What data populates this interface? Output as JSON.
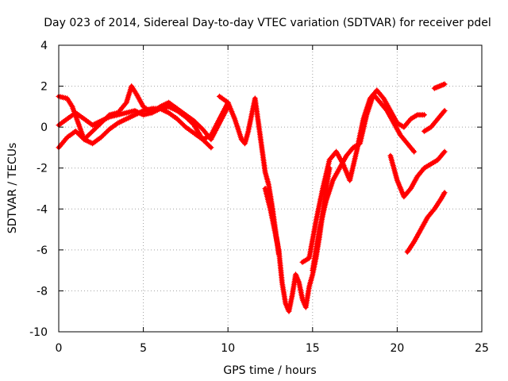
{
  "chart_data": {
    "type": "scatter",
    "title": "Day 023 of 2014, Sidereal Day-to-day VTEC variation (SDTVAR) for receiver pdel",
    "xlabel": "GPS time / hours",
    "ylabel": "SDTVAR / TECUs",
    "xlim": [
      0,
      25
    ],
    "ylim": [
      -10,
      4
    ],
    "xticks": [
      0,
      5,
      10,
      15,
      20,
      25
    ],
    "yticks": [
      -10,
      -8,
      -6,
      -4,
      -2,
      0,
      2,
      4
    ],
    "grid": true,
    "marker": "plus",
    "color": "#ff0000",
    "series": [
      {
        "x": [
          0,
          0.5,
          1,
          1.5,
          2,
          2.5,
          3,
          3.5,
          4,
          4.5,
          5,
          5.5,
          6,
          6.5,
          7,
          7.5,
          8,
          8.5,
          9,
          9.5,
          10
        ],
        "y": [
          -1.0,
          -0.5,
          -0.2,
          -0.6,
          -0.8,
          -0.5,
          -0.1,
          0.2,
          0.4,
          0.6,
          0.8,
          0.9,
          0.9,
          0.7,
          0.4,
          0.0,
          -0.3,
          -0.6,
          -0.4,
          0.4,
          1.2
        ]
      },
      {
        "x": [
          0,
          0.5,
          1,
          1.5,
          2,
          2.5,
          3,
          3.5,
          4,
          4.5,
          5,
          5.5,
          6,
          6.5,
          7,
          7.5,
          8,
          8.5,
          9,
          9.5,
          10
        ],
        "y": [
          0.1,
          0.4,
          0.7,
          0.4,
          0.1,
          0.3,
          0.5,
          0.6,
          0.7,
          0.8,
          0.6,
          0.7,
          1.0,
          1.2,
          0.9,
          0.6,
          0.3,
          -0.1,
          -0.6,
          0.2,
          1.0
        ]
      },
      {
        "x": [
          0,
          0.5,
          0.8,
          1.5,
          2,
          2.5,
          3,
          3.5,
          4,
          4.3,
          4.6,
          5,
          5.5,
          6,
          6.5,
          7,
          7.5,
          8,
          8.5,
          9
        ],
        "y": [
          1.5,
          1.4,
          1.0,
          -0.6,
          -0.2,
          0.2,
          0.6,
          0.7,
          1.2,
          2.0,
          1.6,
          1.0,
          0.7,
          0.9,
          1.0,
          0.8,
          0.5,
          0.1,
          -0.6,
          -1.0
        ]
      },
      {
        "x": [
          9.5,
          10.0,
          10.4,
          10.8,
          11.0,
          11.2,
          11.4,
          11.6,
          11.8,
          12.0,
          12.2,
          12.4,
          12.6,
          12.8,
          13.0
        ],
        "y": [
          1.5,
          1.2,
          0.4,
          -0.6,
          -0.8,
          -0.2,
          0.6,
          1.4,
          0.2,
          -1.0,
          -2.2,
          -2.8,
          -3.8,
          -5.0,
          -6.2
        ]
      },
      {
        "x": [
          12.2,
          12.5,
          12.8,
          13.0,
          13.2,
          13.4,
          13.6,
          13.8,
          14.0,
          14.2,
          14.4,
          14.6,
          14.8,
          15.0,
          15.2,
          15.4,
          15.6,
          15.8,
          16.0
        ],
        "y": [
          -3.0,
          -4.0,
          -5.2,
          -6.0,
          -7.6,
          -8.6,
          -9.0,
          -8.2,
          -7.2,
          -7.6,
          -8.4,
          -8.8,
          -7.8,
          -7.2,
          -6.4,
          -5.4,
          -4.2,
          -3.0,
          -2.0
        ]
      },
      {
        "x": [
          14.4,
          14.8,
          15.2,
          15.6,
          16.0,
          16.4,
          16.8,
          17.2,
          17.6,
          18.0,
          18.4,
          18.8,
          19.2,
          19.6,
          20.0,
          20.4,
          20.8,
          21.2,
          21.6
        ],
        "y": [
          -6.6,
          -6.4,
          -4.6,
          -3.0,
          -1.6,
          -1.2,
          -1.8,
          -2.6,
          -1.2,
          0.4,
          1.4,
          1.8,
          1.4,
          0.8,
          0.2,
          0.0,
          0.4,
          0.6,
          0.6
        ]
      },
      {
        "x": [
          15.0,
          15.4,
          15.8,
          16.2,
          16.6,
          17.0,
          17.4,
          17.8,
          18.2,
          18.6,
          19.0,
          19.4,
          19.8,
          20.2,
          20.6,
          21.0
        ],
        "y": [
          -7.0,
          -5.0,
          -3.6,
          -2.6,
          -2.0,
          -1.4,
          -1.0,
          -0.8,
          0.6,
          1.6,
          1.2,
          0.8,
          0.2,
          -0.4,
          -0.8,
          -1.2
        ]
      },
      {
        "x": [
          19.6,
          20.0,
          20.4,
          20.8,
          21.2,
          21.6,
          22.0,
          22.4,
          22.8
        ],
        "y": [
          -1.4,
          -2.6,
          -3.4,
          -3.0,
          -2.4,
          -2.0,
          -1.8,
          -1.6,
          -1.2
        ]
      },
      {
        "x": [
          20.6,
          21.0,
          21.4,
          21.8,
          22.2,
          22.6,
          22.8
        ],
        "y": [
          -6.1,
          -5.6,
          -5.0,
          -4.4,
          -4.0,
          -3.5,
          -3.2
        ]
      },
      {
        "x": [
          21.6,
          22.0,
          22.4,
          22.8
        ],
        "y": [
          -0.2,
          0.0,
          0.4,
          0.8
        ]
      },
      {
        "x": [
          22.2,
          22.5,
          22.8
        ],
        "y": [
          1.9,
          2.0,
          2.1
        ]
      }
    ]
  }
}
